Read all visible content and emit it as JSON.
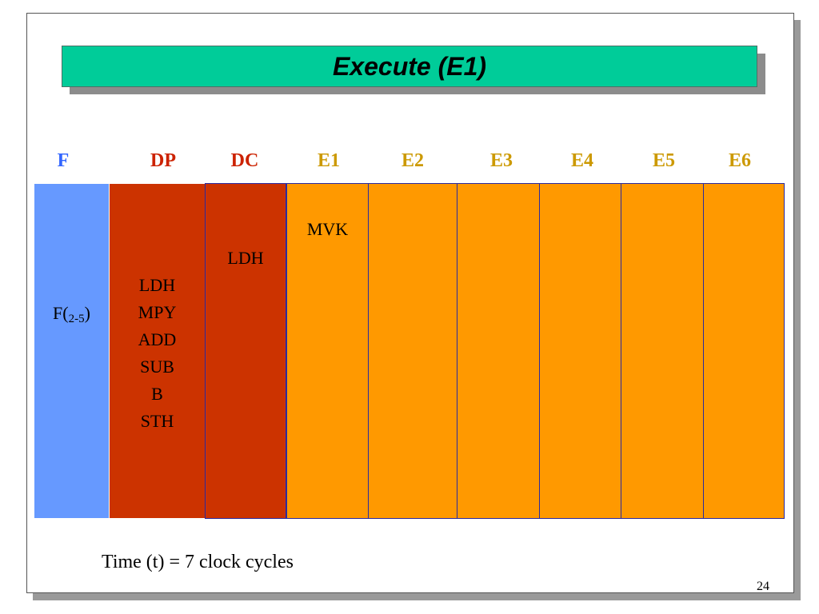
{
  "slide": {
    "title": "Execute (E1)",
    "page_number": "24",
    "time_caption": "Time (t) = 7 clock cycles"
  },
  "stages": [
    {
      "label": "F",
      "color": "#3366ff"
    },
    {
      "label": "DP",
      "color": "#cc2200"
    },
    {
      "label": "DC",
      "color": "#cc2200"
    },
    {
      "label": "E1",
      "color": "#cc9900"
    },
    {
      "label": "E2",
      "color": "#cc9900"
    },
    {
      "label": "E3",
      "color": "#cc9900"
    },
    {
      "label": "E4",
      "color": "#cc9900"
    },
    {
      "label": "E5",
      "color": "#cc9900"
    },
    {
      "label": "E6",
      "color": "#cc9900"
    }
  ],
  "columns": {
    "f": {
      "label_main": "F(",
      "label_sub": "2-5",
      "label_end": ")",
      "color": "#6699ff"
    },
    "dp": {
      "instructions": [
        "LDH",
        "MPY",
        "ADD",
        "SUB",
        "B",
        "STH"
      ],
      "color": "#cc3300"
    },
    "dc": {
      "instruction": "LDH",
      "color": "#cc3300"
    },
    "e1": {
      "instruction": "MVK",
      "color": "#ff9900"
    }
  },
  "colors": {
    "title_bar": "#00cc99",
    "execute_column": "#ff9900",
    "column_border": "#2a2aa0"
  }
}
